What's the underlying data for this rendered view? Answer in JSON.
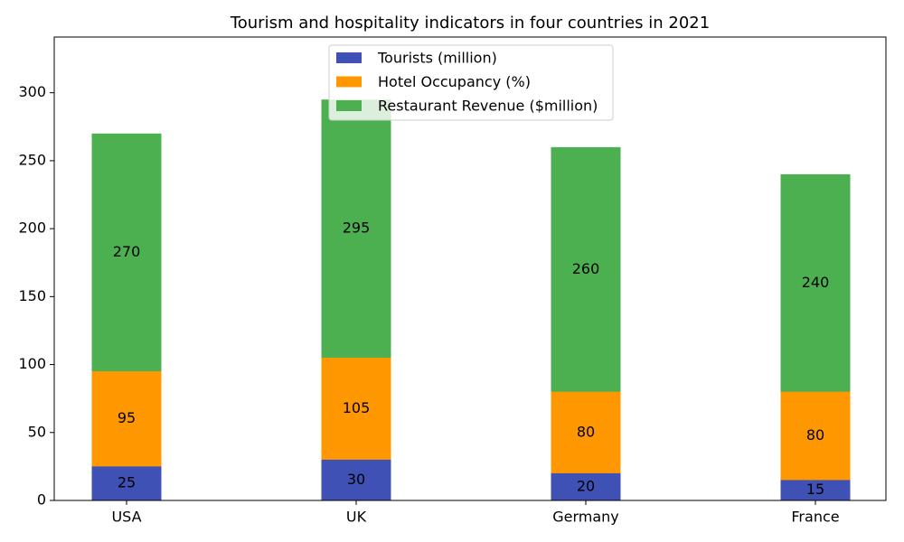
{
  "chart_data": {
    "type": "bar",
    "title": "Tourism and hospitality indicators in four countries in 2021",
    "categories": [
      "USA",
      "UK",
      "Germany",
      "France"
    ],
    "series": [
      {
        "name": "Tourists (million)",
        "color": "#3f51b5",
        "values": [
          25,
          30,
          20,
          15
        ]
      },
      {
        "name": "Hotel Occupancy (%)",
        "color": "#ff9800",
        "values": [
          95,
          105,
          80,
          80
        ]
      },
      {
        "name": "Restaurant Revenue ($million)",
        "color": "#4caf50",
        "values": [
          270,
          295,
          260,
          240
        ]
      }
    ],
    "ylim": [
      0,
      341
    ],
    "yticks": [
      0,
      50,
      100,
      150,
      200,
      250,
      300
    ],
    "grid": false,
    "legend": "upper center"
  }
}
